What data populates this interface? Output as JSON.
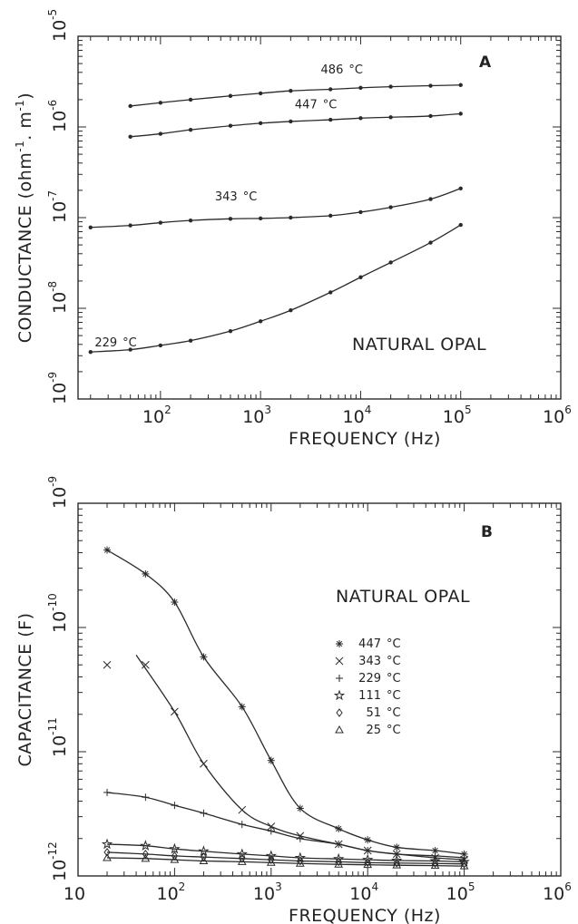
{
  "chart_data": [
    {
      "type": "line",
      "panel": "A",
      "xlabel": "FREQUENCY (Hz)",
      "ylabel": "CONDUCTANCE (ohm",
      "ylabel_sup1": "-1",
      "ylabel_mid": ". m",
      "ylabel_sup2": "-1",
      "ylabel_end": ")",
      "xscale": "log",
      "yscale": "log",
      "xlim": [
        15,
        1000000
      ],
      "ylim": [
        1e-09,
        1e-05
      ],
      "x_ticks": [
        {
          "base": "10",
          "exp": "2",
          "value": 100
        },
        {
          "base": "10",
          "exp": "3",
          "value": 1000
        },
        {
          "base": "10",
          "exp": "4",
          "value": 10000
        },
        {
          "base": "10",
          "exp": "5",
          "value": 100000
        },
        {
          "base": "10",
          "exp": "6",
          "value": 1000000
        }
      ],
      "y_ticks": [
        {
          "base": "10",
          "exp": "-9",
          "value": 1e-09
        },
        {
          "base": "10",
          "exp": "-8",
          "value": 1e-08
        },
        {
          "base": "10",
          "exp": "-7",
          "value": 1e-07
        },
        {
          "base": "10",
          "exp": "-6",
          "value": 1e-06
        },
        {
          "base": "10",
          "exp": "-5",
          "value": 1e-05
        }
      ],
      "note": "NATURAL OPAL",
      "series": [
        {
          "name": "486 °C",
          "label_num": "486",
          "label_unit": "°C",
          "label_at": [
            4000,
            3.9e-06
          ],
          "x": [
            50,
            100,
            200,
            500,
            1000,
            2000,
            5000,
            10000,
            20000,
            50000,
            100000
          ],
          "y": [
            1.7e-06,
            1.85e-06,
            2e-06,
            2.2e-06,
            2.35e-06,
            2.5e-06,
            2.6e-06,
            2.7e-06,
            2.78e-06,
            2.85e-06,
            2.9e-06
          ]
        },
        {
          "name": "447 °C",
          "label_num": "447",
          "label_unit": "°C",
          "label_at": [
            2200,
            1.6e-06
          ],
          "x": [
            50,
            100,
            200,
            500,
            1000,
            2000,
            5000,
            10000,
            20000,
            50000,
            100000
          ],
          "y": [
            7.8e-07,
            8.4e-07,
            9.3e-07,
            1.03e-06,
            1.1e-06,
            1.15e-06,
            1.2e-06,
            1.25e-06,
            1.28e-06,
            1.32e-06,
            1.4e-06
          ]
        },
        {
          "name": "343 °C",
          "label_num": "343",
          "label_unit": "°C",
          "label_at": [
            350,
            1.55e-07
          ],
          "x": [
            20,
            50,
            100,
            200,
            500,
            1000,
            2000,
            5000,
            10000,
            20000,
            50000,
            100000
          ],
          "y": [
            7.8e-08,
            8.2e-08,
            8.8e-08,
            9.3e-08,
            9.7e-08,
            9.8e-08,
            1e-07,
            1.05e-07,
            1.15e-07,
            1.3e-07,
            1.6e-07,
            2.1e-07
          ]
        },
        {
          "name": "229 °C",
          "label_num": "229",
          "label_unit": "°C",
          "label_at": [
            22,
            3.8e-09
          ],
          "x": [
            20,
            50,
            100,
            200,
            500,
            1000,
            2000,
            5000,
            10000,
            20000,
            50000,
            100000
          ],
          "y": [
            3.3e-09,
            3.5e-09,
            3.9e-09,
            4.4e-09,
            5.6e-09,
            7.2e-09,
            9.5e-09,
            1.5e-08,
            2.2e-08,
            3.2e-08,
            5.3e-08,
            8.3e-08
          ]
        }
      ]
    },
    {
      "type": "line",
      "panel": "B",
      "xlabel": "FREQUENCY (Hz)",
      "ylabel": "CAPACITANCE (F)",
      "xscale": "log",
      "yscale": "log",
      "xlim": [
        10,
        1000000
      ],
      "ylim": [
        1e-12,
        1e-09
      ],
      "x_ticks": [
        {
          "base": "10",
          "exp": "",
          "value": 10
        },
        {
          "base": "10",
          "exp": "2",
          "value": 100
        },
        {
          "base": "10",
          "exp": "3",
          "value": 1000
        },
        {
          "base": "10",
          "exp": "4",
          "value": 10000
        },
        {
          "base": "10",
          "exp": "5",
          "value": 100000
        },
        {
          "base": "10",
          "exp": "6",
          "value": 1000000
        }
      ],
      "y_ticks": [
        {
          "base": "10",
          "exp": "-12",
          "value": 1e-12
        },
        {
          "base": "10",
          "exp": "-11",
          "value": 1e-11
        },
        {
          "base": "10",
          "exp": "-10",
          "value": 1e-10
        },
        {
          "base": "10",
          "exp": "-9",
          "value": 1e-09
        }
      ],
      "note": "NATURAL OPAL",
      "series": [
        {
          "name": "447 °C",
          "label_num": "447",
          "label_unit": "°C",
          "marker": "*",
          "x": [
            20,
            50,
            100,
            200,
            500,
            1000,
            2000,
            5000,
            10000,
            20000,
            50000,
            100000
          ],
          "y": [
            4.2e-10,
            2.7e-10,
            1.6e-10,
            5.8e-11,
            2.3e-11,
            8.5e-12,
            3.5e-12,
            2.4e-12,
            1.95e-12,
            1.7e-12,
            1.6e-12,
            1.5e-12
          ]
        },
        {
          "name": "343 °C",
          "label_num": "343",
          "label_unit": "°C",
          "marker": "x",
          "x": [
            20,
            50,
            100,
            200,
            500,
            1000,
            2000,
            5000,
            10000,
            20000,
            50000,
            100000
          ],
          "y": [
            5e-11,
            5e-11,
            2.1e-11,
            8e-12,
            3.4e-12,
            2.5e-12,
            2.1e-12,
            1.8e-12,
            1.6e-12,
            1.5e-12,
            1.4e-12,
            1.35e-12
          ]
        },
        {
          "name": "229 °C",
          "label_num": "229",
          "label_unit": "°C",
          "marker": "+",
          "x": [
            20,
            50,
            100,
            200,
            500,
            1000,
            2000,
            5000,
            10000,
            20000,
            50000,
            100000
          ],
          "y": [
            4.7e-12,
            4.3e-12,
            3.7e-12,
            3.2e-12,
            2.6e-12,
            2.3e-12,
            2e-12,
            1.8e-12,
            1.6e-12,
            1.5e-12,
            1.45e-12,
            1.4e-12
          ]
        },
        {
          "name": "111 °C",
          "label_num": "111",
          "label_unit": "°C",
          "marker": "star",
          "x": [
            20,
            50,
            100,
            200,
            500,
            1000,
            2000,
            5000,
            10000,
            20000,
            50000,
            100000
          ],
          "y": [
            1.8e-12,
            1.75e-12,
            1.65e-12,
            1.58e-12,
            1.5e-12,
            1.45e-12,
            1.4e-12,
            1.37e-12,
            1.35e-12,
            1.33e-12,
            1.32e-12,
            1.3e-12
          ]
        },
        {
          "name": "51 °C",
          "label_num": "51",
          "label_unit": "°C",
          "marker": "diamond",
          "x": [
            20,
            50,
            100,
            200,
            500,
            1000,
            2000,
            5000,
            10000,
            20000,
            50000,
            100000
          ],
          "y": [
            1.55e-12,
            1.5e-12,
            1.45e-12,
            1.42e-12,
            1.38e-12,
            1.35e-12,
            1.32e-12,
            1.3e-12,
            1.28e-12,
            1.27e-12,
            1.26e-12,
            1.25e-12
          ]
        },
        {
          "name": "25 °C",
          "label_num": "25",
          "label_unit": "°C",
          "marker": "triangle",
          "x": [
            20,
            50,
            100,
            200,
            500,
            1000,
            2000,
            5000,
            10000,
            20000,
            50000,
            100000
          ],
          "y": [
            1.4e-12,
            1.38e-12,
            1.35e-12,
            1.32e-12,
            1.3e-12,
            1.28e-12,
            1.26e-12,
            1.24e-12,
            1.23e-12,
            1.22e-12,
            1.21e-12,
            1.2e-12
          ]
        }
      ]
    }
  ]
}
